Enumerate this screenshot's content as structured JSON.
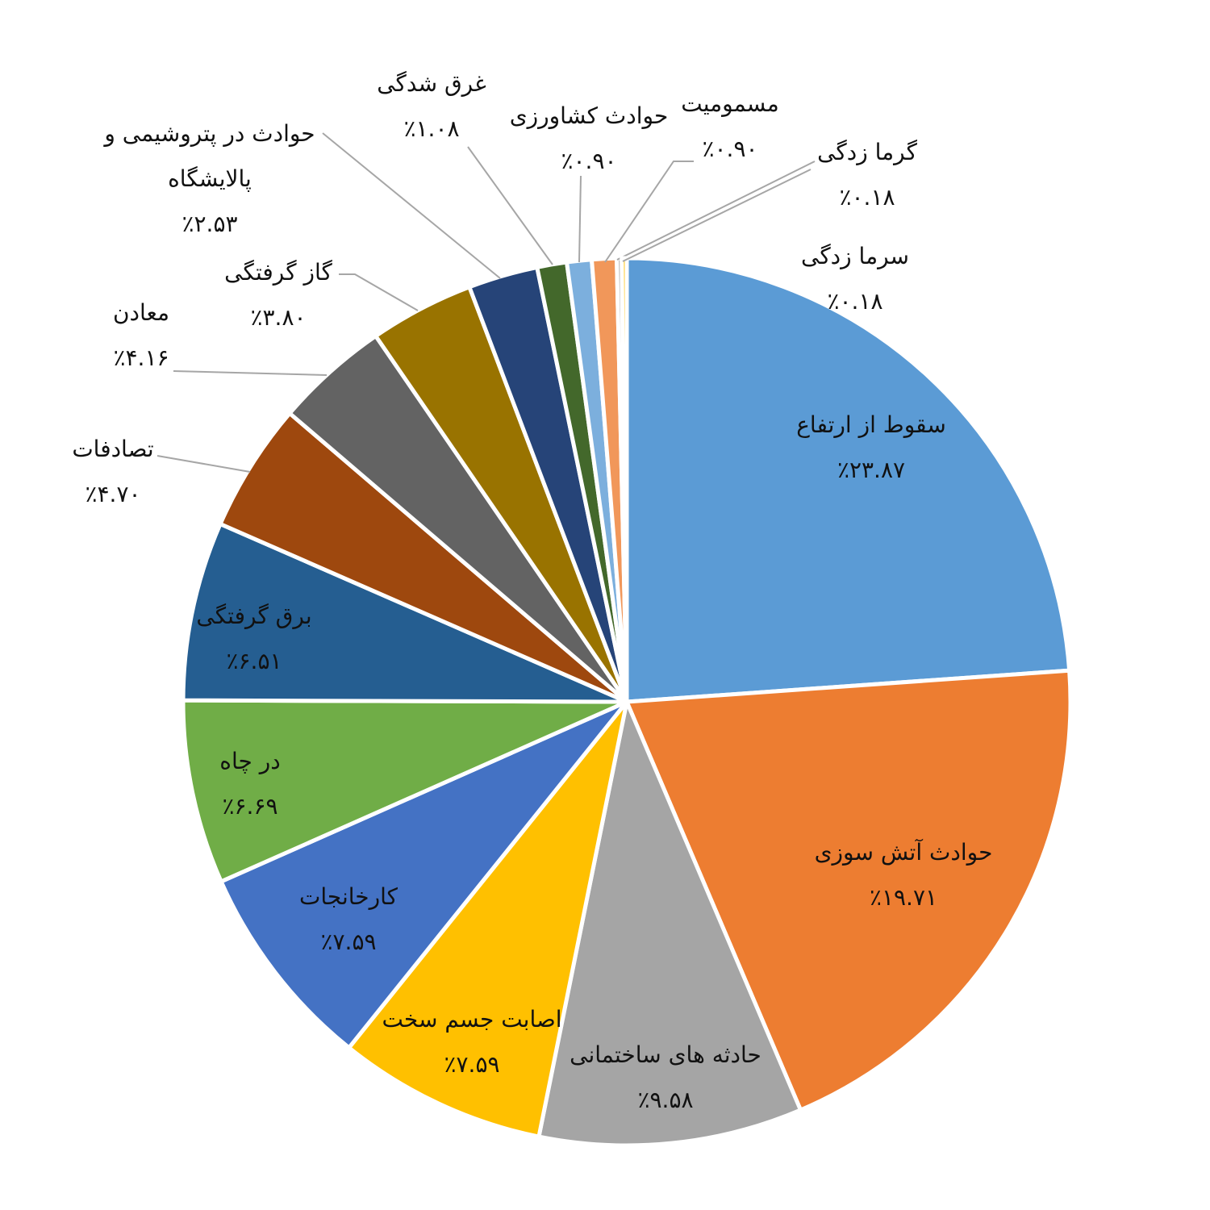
{
  "chart_data": {
    "type": "pie",
    "categories": [
      "سقوط از ارتفاع",
      "حوادث آتش سوزی",
      "حادثه های ساختمانی",
      "اصابت جسم سخت",
      "کارخانجات",
      "در چاه",
      "برق گرفتگی",
      "تصادفات",
      "معادن",
      "گاز گرفتگی",
      "حوادث در پتروشیمی و پالایشگاه",
      "غرق شدگی",
      "حوادث کشاورزی",
      "مسمومیت",
      "گرما زدگی",
      "سرما زدگی"
    ],
    "values": [
      23.87,
      19.71,
      9.58,
      7.59,
      7.59,
      6.69,
      6.51,
      4.7,
      4.16,
      3.8,
      2.53,
      1.08,
      0.9,
      0.9,
      0.18,
      0.18
    ],
    "value_labels": [
      "٪۲۳.۸۷",
      "٪۱۹.۷۱",
      "٪۹.۵۸",
      "٪۷.۵۹",
      "٪۷.۵۹",
      "٪۶.۶۹",
      "٪۶.۵۱",
      "٪۴.۷۰",
      "٪۴.۱۶",
      "٪۳.۸۰",
      "٪۲.۵۳",
      "٪۱.۰۸",
      "٪۰.۹۰",
      "٪۰.۹۰",
      "٪۰.۱۸",
      "٪۰.۱۸"
    ],
    "colors": [
      "#5b9bd5",
      "#ed7d31",
      "#a5a5a5",
      "#ffc000",
      "#4472c4",
      "#70ad47",
      "#255e91",
      "#9e480e",
      "#636363",
      "#997300",
      "#264478",
      "#43682b",
      "#7cafdd",
      "#f1975a",
      "#b7b7b7",
      "#ffcd33"
    ]
  }
}
